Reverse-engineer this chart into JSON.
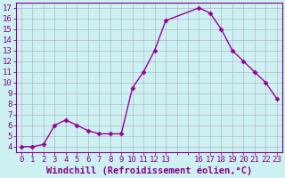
{
  "x": [
    0,
    1,
    2,
    3,
    4,
    5,
    6,
    7,
    8,
    9,
    10,
    11,
    12,
    13,
    16,
    17,
    18,
    19,
    20,
    21,
    22,
    23
  ],
  "y": [
    4.0,
    4.0,
    4.2,
    6.0,
    6.5,
    6.0,
    5.5,
    5.2,
    5.2,
    5.2,
    9.5,
    11.0,
    13.0,
    15.8,
    17.0,
    16.5,
    15.0,
    13.0,
    12.0,
    11.0,
    10.0,
    8.5
  ],
  "line_color": "#990099",
  "marker": "D",
  "marker_size": 2.5,
  "bg_color": "#cdf0f0",
  "grid_color": "#aaaacc",
  "xlabel": "Windchill (Refroidissement éolien,°C)",
  "xlim": [
    -0.5,
    23.5
  ],
  "ylim": [
    3.5,
    17.5
  ],
  "yticks": [
    4,
    5,
    6,
    7,
    8,
    9,
    10,
    11,
    12,
    13,
    14,
    15,
    16,
    17
  ],
  "xtick_labels": [
    "0",
    "1",
    "2",
    "3",
    "4",
    "5",
    "6",
    "7",
    "8",
    "9",
    "10",
    "11",
    "12",
    "13",
    "  1617",
    "18",
    "19",
    "20",
    "21",
    "22",
    "23",
    ""
  ],
  "tick_label_fontsize": 6.5,
  "xlabel_fontsize": 7.5,
  "axis_color": "#880088",
  "tick_color": "#880088",
  "spine_color": "#880088"
}
